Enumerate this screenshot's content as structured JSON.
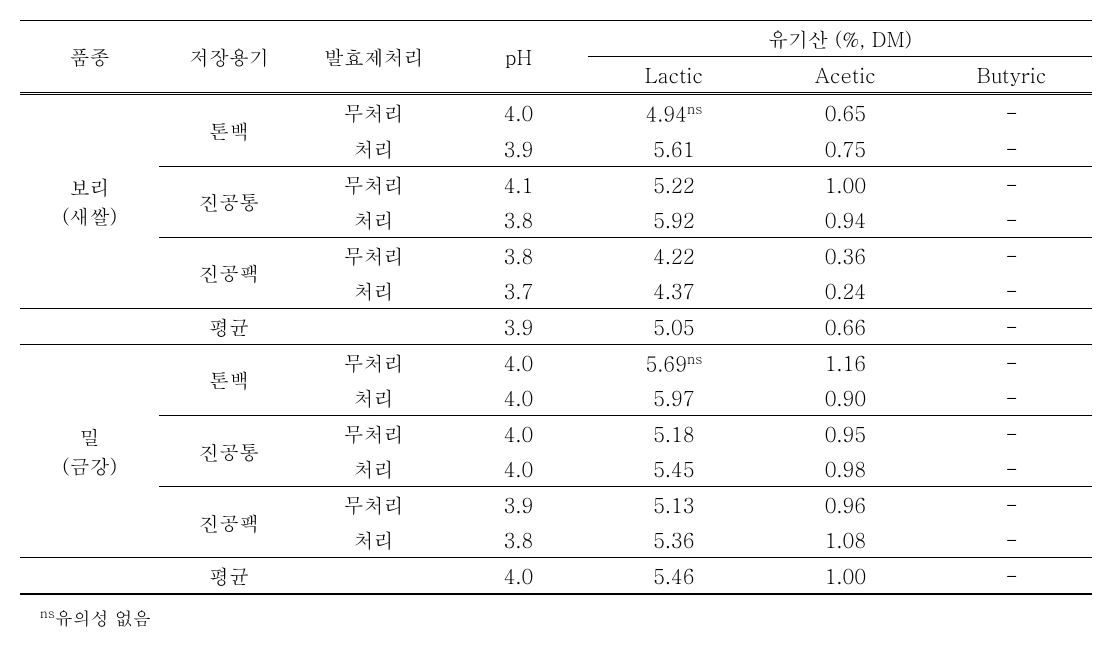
{
  "headers": {
    "col1": "품종",
    "col2": "저장용기",
    "col3": "발효제처리",
    "col4": "pH",
    "col5_group": "유기산 (%, DM)",
    "col5a": "Lactic",
    "col5b": "Acetic",
    "col5c": "Butyric"
  },
  "groups": [
    {
      "name_line1": "보리",
      "name_line2": "(새쌀)",
      "subgroups": [
        {
          "container": "톤백",
          "rows": [
            {
              "treatment": "무처리",
              "ph": "4.0",
              "lactic": "4.94",
              "lactic_sup": "ns",
              "acetic": "0.65",
              "butyric": "-"
            },
            {
              "treatment": "처리",
              "ph": "3.9",
              "lactic": "5.61",
              "lactic_sup": "",
              "acetic": "0.75",
              "butyric": "-"
            }
          ]
        },
        {
          "container": "진공통",
          "rows": [
            {
              "treatment": "무처리",
              "ph": "4.1",
              "lactic": "5.22",
              "lactic_sup": "",
              "acetic": "1.00",
              "butyric": "-"
            },
            {
              "treatment": "처리",
              "ph": "3.8",
              "lactic": "5.92",
              "lactic_sup": "",
              "acetic": "0.94",
              "butyric": "-"
            }
          ]
        },
        {
          "container": "진공팩",
          "rows": [
            {
              "treatment": "무처리",
              "ph": "3.8",
              "lactic": "4.22",
              "lactic_sup": "",
              "acetic": "0.36",
              "butyric": "-"
            },
            {
              "treatment": "처리",
              "ph": "3.7",
              "lactic": "4.37",
              "lactic_sup": "",
              "acetic": "0.24",
              "butyric": "-"
            }
          ]
        }
      ],
      "avg": {
        "label": "평균",
        "ph": "3.9",
        "lactic": "5.05",
        "acetic": "0.66",
        "butyric": "-"
      }
    },
    {
      "name_line1": "밀",
      "name_line2": "(금강)",
      "subgroups": [
        {
          "container": "톤백",
          "rows": [
            {
              "treatment": "무처리",
              "ph": "4.0",
              "lactic": "5.69",
              "lactic_sup": "ns",
              "acetic": "1.16",
              "butyric": "-"
            },
            {
              "treatment": "처리",
              "ph": "4.0",
              "lactic": "5.97",
              "lactic_sup": "",
              "acetic": "0.90",
              "butyric": "-"
            }
          ]
        },
        {
          "container": "진공통",
          "rows": [
            {
              "treatment": "무처리",
              "ph": "4.0",
              "lactic": "5.18",
              "lactic_sup": "",
              "acetic": "0.95",
              "butyric": "-"
            },
            {
              "treatment": "처리",
              "ph": "4.0",
              "lactic": "5.45",
              "lactic_sup": "",
              "acetic": "0.98",
              "butyric": "-"
            }
          ]
        },
        {
          "container": "진공팩",
          "rows": [
            {
              "treatment": "무처리",
              "ph": "3.9",
              "lactic": "5.13",
              "lactic_sup": "",
              "acetic": "0.96",
              "butyric": "-"
            },
            {
              "treatment": "처리",
              "ph": "3.8",
              "lactic": "5.36",
              "lactic_sup": "",
              "acetic": "1.08",
              "butyric": "-"
            }
          ]
        }
      ],
      "avg": {
        "label": "평균",
        "ph": "4.0",
        "lactic": "5.46",
        "acetic": "1.00",
        "butyric": "-"
      }
    }
  ],
  "footnote_sup": "ns",
  "footnote_text": "유의성 없음"
}
